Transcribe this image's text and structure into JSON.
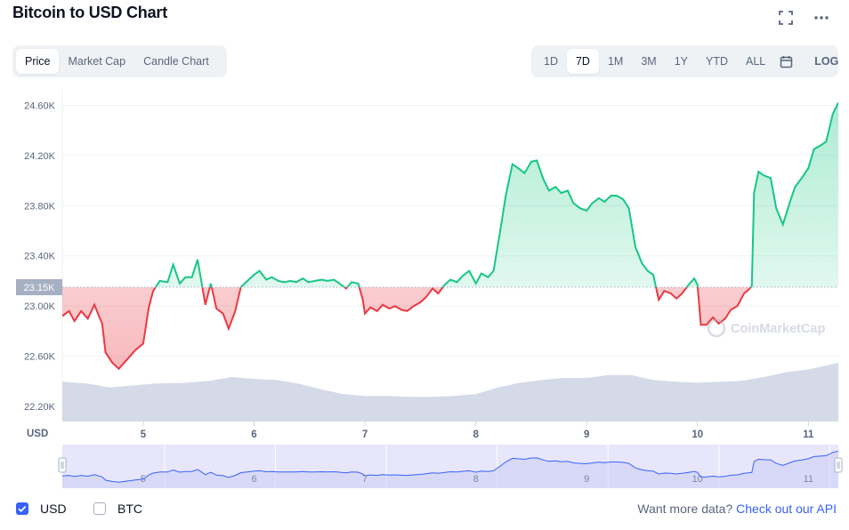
{
  "header": {
    "title": "Bitcoin to USD Chart",
    "icons": [
      "fullscreen-icon",
      "more-icon"
    ]
  },
  "tabs": [
    {
      "label": "Price",
      "active": true
    },
    {
      "label": "Market Cap",
      "active": false
    },
    {
      "label": "Candle Chart",
      "active": false
    }
  ],
  "ranges": [
    {
      "label": "1D",
      "active": false
    },
    {
      "label": "7D",
      "active": true
    },
    {
      "label": "1M",
      "active": false
    },
    {
      "label": "3M",
      "active": false
    },
    {
      "label": "1Y",
      "active": false
    },
    {
      "label": "YTD",
      "active": false
    },
    {
      "label": "ALL",
      "active": false
    }
  ],
  "calendar_icon": "calendar-icon",
  "log_label": "LOG",
  "colors": {
    "up": "#16c784",
    "down": "#ea3943",
    "volume": "#cfd6e4",
    "navigator_fill": "#e7e6fb",
    "navigator_line": "#3861fb",
    "accent": "#3861fb"
  },
  "chart_data": {
    "type": "line",
    "title": "Bitcoin to USD Chart",
    "xlabel": "",
    "ylabel": "USD",
    "currency_label": "USD",
    "y_ticks": [
      "24.60K",
      "24.20K",
      "23.80K",
      "23.40K",
      "23.00K",
      "22.60K",
      "22.20K"
    ],
    "y_tick_values": [
      24600,
      24200,
      23800,
      23400,
      23000,
      22600,
      22200
    ],
    "ylim": [
      22080,
      24730
    ],
    "x_ticks": [
      "5",
      "6",
      "7",
      "8",
      "9",
      "10",
      "11"
    ],
    "x_tick_values": [
      5,
      6,
      7,
      8,
      9,
      10,
      11
    ],
    "xlim": [
      4.27,
      11.27
    ],
    "baseline_label": "23.15K",
    "baseline": 23150,
    "watermark": "CoinMarketCap",
    "grid": true,
    "series": [
      {
        "name": "Price",
        "points": [
          [
            4.27,
            22920
          ],
          [
            4.33,
            22960
          ],
          [
            4.38,
            22880
          ],
          [
            4.44,
            22960
          ],
          [
            4.5,
            22900
          ],
          [
            4.56,
            23010
          ],
          [
            4.6,
            22920
          ],
          [
            4.63,
            22860
          ],
          [
            4.66,
            22630
          ],
          [
            4.72,
            22550
          ],
          [
            4.78,
            22500
          ],
          [
            4.86,
            22580
          ],
          [
            4.93,
            22650
          ],
          [
            5.0,
            22700
          ],
          [
            5.05,
            22990
          ],
          [
            5.09,
            23120
          ],
          [
            5.15,
            23200
          ],
          [
            5.22,
            23190
          ],
          [
            5.27,
            23330
          ],
          [
            5.33,
            23180
          ],
          [
            5.38,
            23230
          ],
          [
            5.44,
            23230
          ],
          [
            5.49,
            23370
          ],
          [
            5.52,
            23220
          ],
          [
            5.56,
            23010
          ],
          [
            5.61,
            23180
          ],
          [
            5.66,
            22980
          ],
          [
            5.72,
            22940
          ],
          [
            5.77,
            22820
          ],
          [
            5.83,
            22960
          ],
          [
            5.88,
            23150
          ],
          [
            5.94,
            23200
          ],
          [
            6.0,
            23250
          ],
          [
            6.05,
            23280
          ],
          [
            6.11,
            23210
          ],
          [
            6.16,
            23230
          ],
          [
            6.22,
            23200
          ],
          [
            6.27,
            23190
          ],
          [
            6.33,
            23200
          ],
          [
            6.38,
            23190
          ],
          [
            6.44,
            23220
          ],
          [
            6.49,
            23190
          ],
          [
            6.55,
            23200
          ],
          [
            6.61,
            23210
          ],
          [
            6.66,
            23200
          ],
          [
            6.72,
            23210
          ],
          [
            6.77,
            23180
          ],
          [
            6.83,
            23140
          ],
          [
            6.88,
            23190
          ],
          [
            6.94,
            23180
          ],
          [
            6.98,
            23050
          ],
          [
            7.0,
            22940
          ],
          [
            7.05,
            22990
          ],
          [
            7.11,
            22960
          ],
          [
            7.16,
            23010
          ],
          [
            7.22,
            22980
          ],
          [
            7.27,
            23000
          ],
          [
            7.33,
            22970
          ],
          [
            7.38,
            22960
          ],
          [
            7.44,
            23000
          ],
          [
            7.5,
            23030
          ],
          [
            7.55,
            23070
          ],
          [
            7.61,
            23140
          ],
          [
            7.66,
            23100
          ],
          [
            7.72,
            23170
          ],
          [
            7.77,
            23210
          ],
          [
            7.83,
            23190
          ],
          [
            7.88,
            23240
          ],
          [
            7.94,
            23280
          ],
          [
            8.0,
            23180
          ],
          [
            8.05,
            23260
          ],
          [
            8.11,
            23230
          ],
          [
            8.16,
            23280
          ],
          [
            8.22,
            23600
          ],
          [
            8.27,
            23880
          ],
          [
            8.33,
            24130
          ],
          [
            8.38,
            24100
          ],
          [
            8.44,
            24060
          ],
          [
            8.5,
            24150
          ],
          [
            8.55,
            24160
          ],
          [
            8.61,
            24010
          ],
          [
            8.66,
            23920
          ],
          [
            8.72,
            23950
          ],
          [
            8.77,
            23900
          ],
          [
            8.83,
            23920
          ],
          [
            8.88,
            23820
          ],
          [
            8.94,
            23780
          ],
          [
            9.0,
            23760
          ],
          [
            9.05,
            23820
          ],
          [
            9.11,
            23860
          ],
          [
            9.16,
            23830
          ],
          [
            9.22,
            23880
          ],
          [
            9.27,
            23880
          ],
          [
            9.33,
            23850
          ],
          [
            9.38,
            23780
          ],
          [
            9.44,
            23470
          ],
          [
            9.5,
            23340
          ],
          [
            9.55,
            23280
          ],
          [
            9.6,
            23250
          ],
          [
            9.65,
            23050
          ],
          [
            9.7,
            23120
          ],
          [
            9.76,
            23100
          ],
          [
            9.81,
            23060
          ],
          [
            9.86,
            23100
          ],
          [
            9.92,
            23170
          ],
          [
            9.97,
            23220
          ],
          [
            10.0,
            23170
          ],
          [
            10.03,
            22850
          ],
          [
            10.08,
            22850
          ],
          [
            10.14,
            22910
          ],
          [
            10.19,
            22860
          ],
          [
            10.25,
            22900
          ],
          [
            10.3,
            22970
          ],
          [
            10.36,
            23000
          ],
          [
            10.42,
            23100
          ],
          [
            10.46,
            23130
          ],
          [
            10.49,
            23160
          ],
          [
            10.51,
            23900
          ],
          [
            10.55,
            24070
          ],
          [
            10.6,
            24040
          ],
          [
            10.66,
            24020
          ],
          [
            10.71,
            23780
          ],
          [
            10.77,
            23650
          ],
          [
            10.83,
            23820
          ],
          [
            10.88,
            23950
          ],
          [
            10.94,
            24020
          ],
          [
            11.0,
            24100
          ],
          [
            11.05,
            24250
          ],
          [
            11.11,
            24280
          ],
          [
            11.16,
            24310
          ],
          [
            11.22,
            24530
          ],
          [
            11.27,
            24620
          ]
        ]
      },
      {
        "name": "Volume",
        "points": [
          [
            4.27,
            0.42
          ],
          [
            4.5,
            0.4
          ],
          [
            4.7,
            0.36
          ],
          [
            4.9,
            0.38
          ],
          [
            5.1,
            0.4
          ],
          [
            5.4,
            0.41
          ],
          [
            5.6,
            0.43
          ],
          [
            5.8,
            0.47
          ],
          [
            6.0,
            0.45
          ],
          [
            6.2,
            0.44
          ],
          [
            6.4,
            0.4
          ],
          [
            6.6,
            0.34
          ],
          [
            6.8,
            0.29
          ],
          [
            7.0,
            0.27
          ],
          [
            7.2,
            0.27
          ],
          [
            7.4,
            0.26
          ],
          [
            7.6,
            0.26
          ],
          [
            7.8,
            0.27
          ],
          [
            8.0,
            0.29
          ],
          [
            8.2,
            0.36
          ],
          [
            8.4,
            0.41
          ],
          [
            8.6,
            0.44
          ],
          [
            8.8,
            0.46
          ],
          [
            9.0,
            0.46
          ],
          [
            9.2,
            0.49
          ],
          [
            9.4,
            0.49
          ],
          [
            9.6,
            0.44
          ],
          [
            9.8,
            0.42
          ],
          [
            10.0,
            0.41
          ],
          [
            10.2,
            0.42
          ],
          [
            10.4,
            0.43
          ],
          [
            10.5,
            0.45
          ],
          [
            10.6,
            0.47
          ],
          [
            10.8,
            0.52
          ],
          [
            11.0,
            0.55
          ],
          [
            11.27,
            0.62
          ]
        ]
      }
    ]
  },
  "navigator": {
    "x_ticks": [
      "5",
      "6",
      "7",
      "8",
      "9",
      "10",
      "11"
    ]
  },
  "footer": {
    "usd_label": "USD",
    "usd_checked": true,
    "btc_label": "BTC",
    "btc_checked": false,
    "prompt": "Want more data?",
    "link": "Check out our API"
  }
}
